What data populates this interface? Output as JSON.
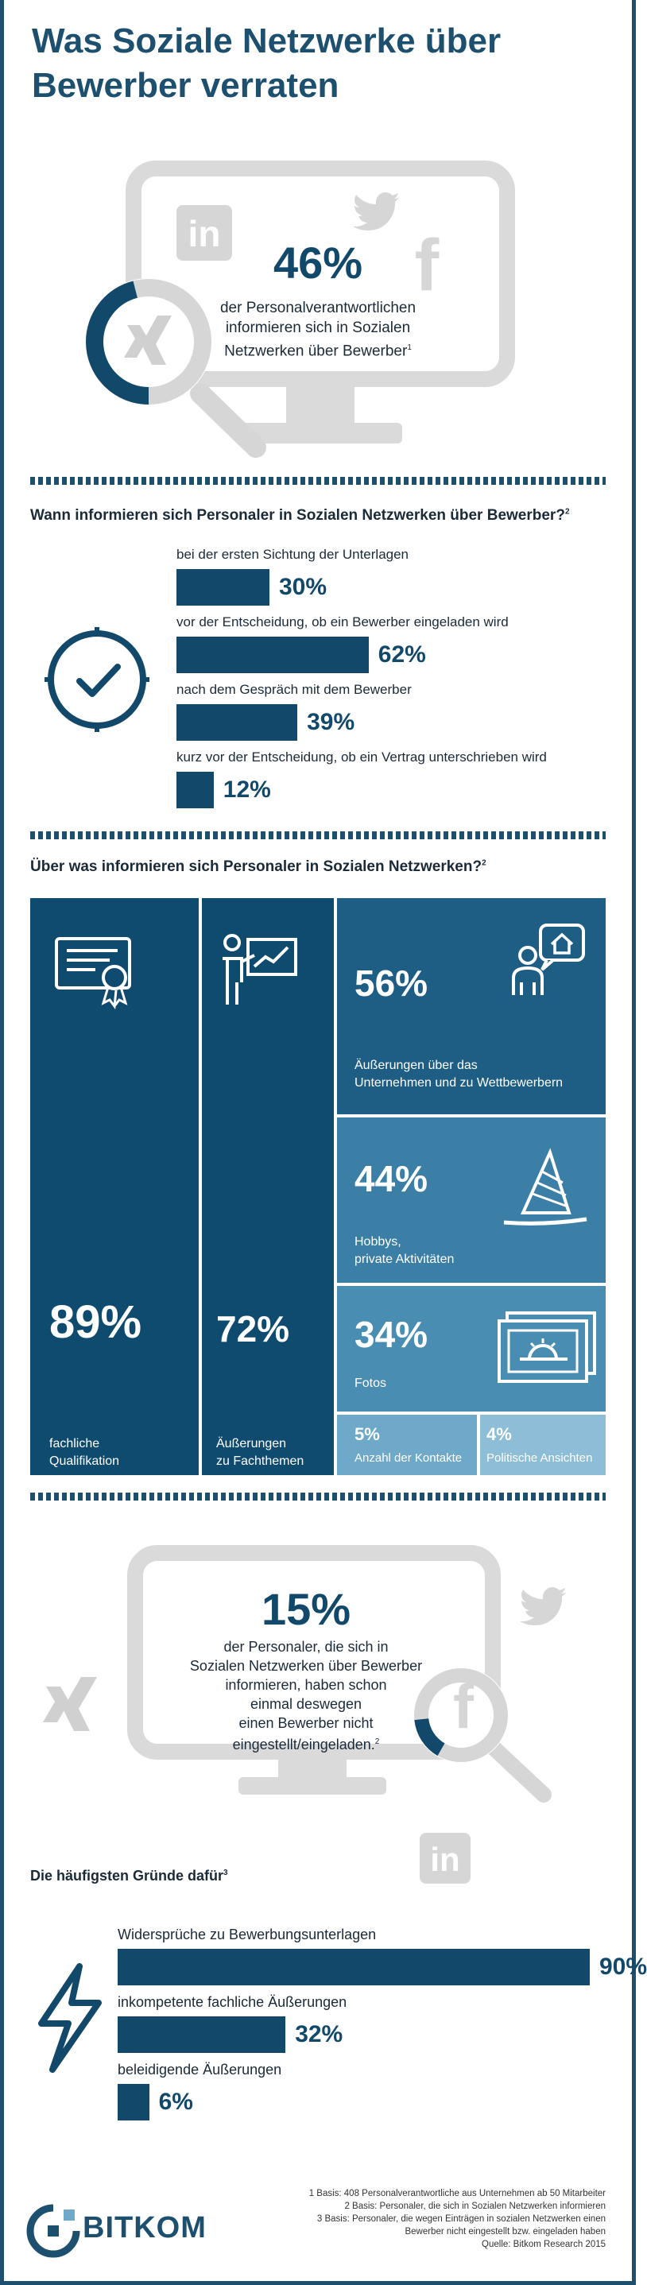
{
  "title": "Was Soziale Netzwerke über Bewerber verraten",
  "hero": {
    "percent": "46%",
    "text": "der Personalverantwortlichen informieren sich in Sozialen Netzwerken über Bewerber",
    "footnote_mark": "1",
    "value": 46
  },
  "colors": {
    "dark": "#12496b",
    "tile_dark": "#0f4a6f",
    "tile_mid": "#2a6f93",
    "tile_light": "#4a8db2",
    "tile_lighter": "#6fa9c9",
    "gray": "#d9d9d9"
  },
  "chart_data": [
    {
      "type": "bar",
      "title": "Wann informieren sich Personaler in Sozialen Netzwerken über Bewerber?",
      "footnote_mark": "2",
      "categories": [
        "bei der ersten Sichtung der Unterlagen",
        "vor der Entscheidung, ob ein Bewerber eingeladen wird",
        "nach dem Gespräch mit dem Bewerber",
        "kurz vor der Entscheidung, ob ein Vertrag unterschrieben wird"
      ],
      "values": [
        30,
        62,
        39,
        12
      ],
      "labels": [
        "30%",
        "62%",
        "39%",
        "12%"
      ]
    },
    {
      "type": "treemap",
      "title": "Über was informieren sich Personaler in Sozialen Netzwerken?",
      "footnote_mark": "2",
      "items": [
        {
          "label": "fachliche Qualifikation",
          "value": 89,
          "text": "89%"
        },
        {
          "label": "Äußerungen zu Fachthemen",
          "value": 72,
          "text": "72%"
        },
        {
          "label": "Äußerungen über das Unternehmen und zu Wettbewerbern",
          "value": 56,
          "text": "56%"
        },
        {
          "label": "Hobbys, private Aktivitäten",
          "value": 44,
          "text": "44%"
        },
        {
          "label": "Fotos",
          "value": 34,
          "text": "34%"
        },
        {
          "label": "Anzahl der Kontakte",
          "value": 5,
          "text": "5%"
        },
        {
          "label": "Politische Ansichten",
          "value": 4,
          "text": "4%"
        }
      ]
    },
    {
      "type": "bar",
      "title": "Die häufigsten Gründe dafür",
      "footnote_mark": "3",
      "categories": [
        "Widersprüche zu Bewerbungsunterlagen",
        "inkompetente fachliche Äußerungen",
        "beleidigende Äußerungen"
      ],
      "values": [
        90,
        32,
        6
      ],
      "labels": [
        "90%",
        "32%",
        "6%"
      ]
    }
  ],
  "tiles": {
    "t89": {
      "pct": "89%",
      "cap1": "fachliche",
      "cap2": "Qualifikation"
    },
    "t72": {
      "pct": "72%",
      "cap1": "Äußerungen",
      "cap2": "zu Fachthemen"
    },
    "t56": {
      "pct": "56%",
      "cap1": "Äußerungen über das",
      "cap2": "Unternehmen und zu Wettbewerbern"
    },
    "t44": {
      "pct": "44%",
      "cap1": "Hobbys,",
      "cap2": "private Aktivitäten"
    },
    "t34": {
      "pct": "34%",
      "cap1": "Fotos"
    },
    "t5": {
      "pct": "5%",
      "cap1": "Anzahl der Kontakte"
    },
    "t4": {
      "pct": "4%",
      "cap1": "Politische Ansichten"
    }
  },
  "second": {
    "percent": "15%",
    "lines": [
      "der Personaler, die sich in",
      "Sozialen Netzwerken über Bewerber",
      "informieren, haben schon",
      "einmal deswegen",
      "einen Bewerber nicht",
      "eingestellt/eingeladen."
    ],
    "footnote_mark": "2",
    "value": 15
  },
  "footnotes": [
    "1 Basis: 408 Personalverantwortliche aus Unternehmen ab 50 Mitarbeiter",
    "2 Basis: Personaler, die sich in Sozialen Netzwerken informieren",
    "3 Basis: Personaler, die wegen Einträgen in sozialen Netzwerken einen",
    "Bewerber nicht eingestellt bzw. eingeladen haben",
    "Quelle: Bitkom Research 2015"
  ],
  "logo": {
    "text": "BITKOM"
  },
  "icons": {
    "linkedin": "in",
    "twitter": "twitter-bird",
    "facebook": "f",
    "xing": "xing",
    "clock": "clock",
    "lightning": "lightning"
  }
}
